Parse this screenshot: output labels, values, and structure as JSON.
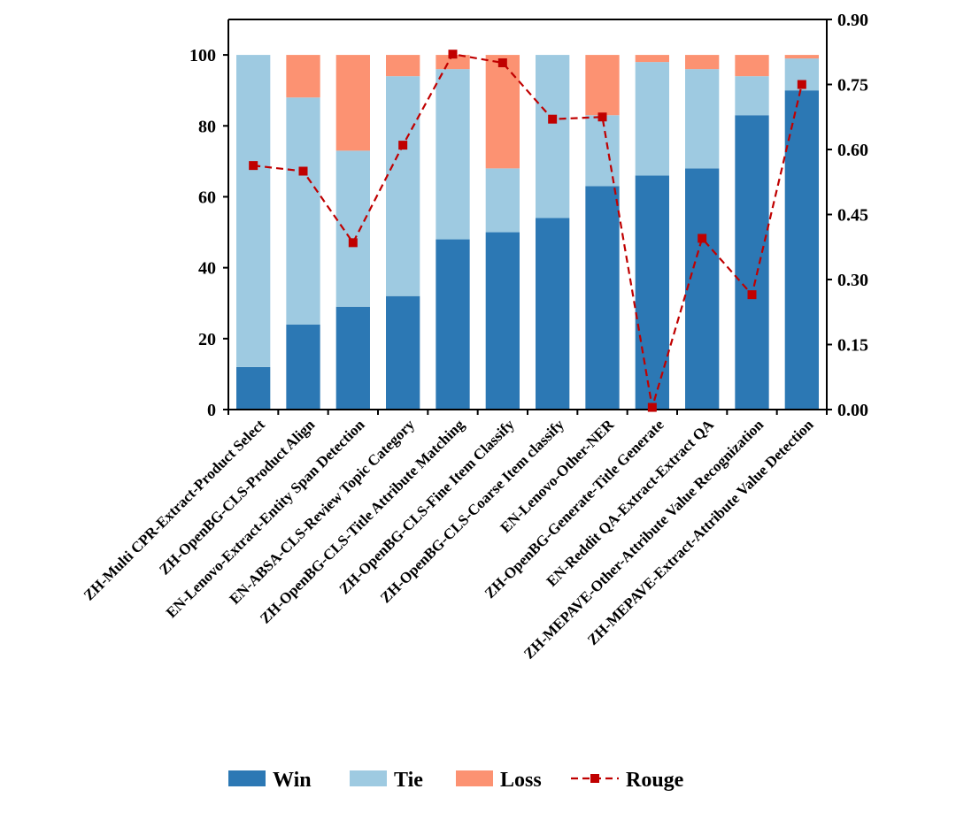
{
  "chart_data": {
    "type": "bar",
    "stacked": true,
    "categories": [
      "ZH-Multi CPR-Extract-Product Select",
      "ZH-OpenBG-CLS-Product Align",
      "EN-Lenovo-Extract-Entity Span Detection",
      "EN-ABSA-CLS-Review Topic Category",
      "ZH-OpenBG-CLS-Title Attribute Matching",
      "ZH-OpenBG-CLS-Fine Item Classify",
      "ZH-OpenBG-CLS-Coarse Item classify",
      "EN-Lenovo-Other-NER",
      "ZH-OpenBG-Generate-Title Generate",
      "EN-Reddit QA-Extract-Extract QA",
      "ZH-MEPAVE-Other-Attribute Value Recognization",
      "ZH-MEPAVE-Extract-Attribute Value Detection"
    ],
    "series": [
      {
        "name": "Win",
        "axis": "left",
        "kind": "bar",
        "color": "#2c78b4",
        "values": [
          12,
          24,
          29,
          32,
          48,
          50,
          54,
          63,
          66,
          68,
          83,
          90
        ]
      },
      {
        "name": "Tie",
        "axis": "left",
        "kind": "bar",
        "color": "#9ecae1",
        "values": [
          88,
          64,
          44,
          62,
          48,
          18,
          46,
          20,
          32,
          28,
          11,
          9
        ]
      },
      {
        "name": "Loss",
        "axis": "left",
        "kind": "bar",
        "color": "#fc9272",
        "values": [
          0,
          12,
          27,
          6,
          4,
          32,
          0,
          17,
          2,
          4,
          6,
          1
        ]
      },
      {
        "name": "Rouge",
        "axis": "right",
        "kind": "line",
        "color": "#c00000",
        "values": [
          0.563,
          0.55,
          0.385,
          0.61,
          0.82,
          0.8,
          0.67,
          0.675,
          0.005,
          0.395,
          0.265,
          0.75
        ]
      }
    ],
    "y_left": {
      "range": [
        0,
        110
      ],
      "ticks": [
        0,
        20,
        40,
        60,
        80,
        100
      ]
    },
    "y_right": {
      "range": [
        0,
        0.9
      ],
      "ticks": [
        "0.00",
        "0.15",
        "0.30",
        "0.45",
        "0.60",
        "0.75",
        "0.90"
      ]
    },
    "legend_position": "bottom",
    "grid": false,
    "title": "",
    "xlabel": "",
    "ylabel": ""
  }
}
